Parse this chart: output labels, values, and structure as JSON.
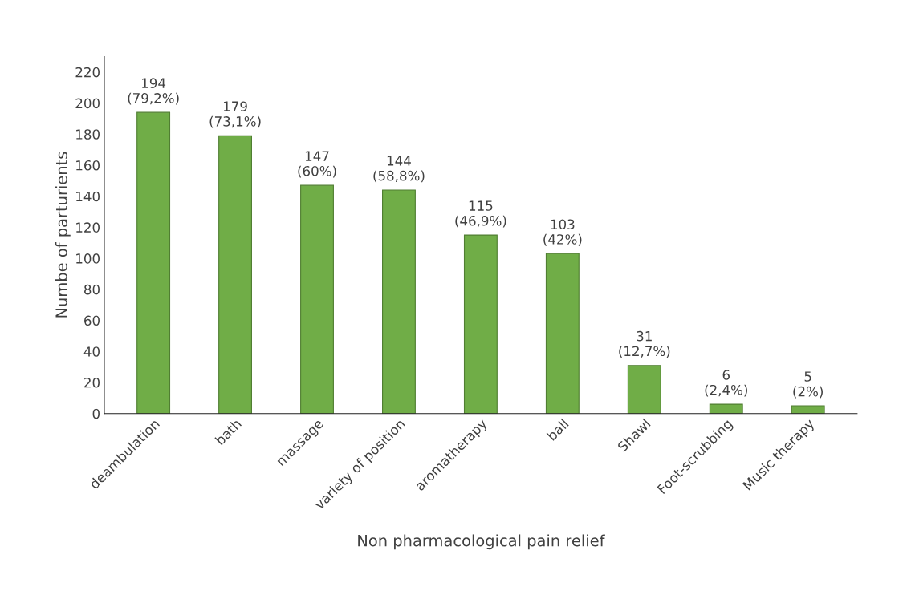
{
  "chart_data": {
    "type": "bar",
    "xlabel": "Non pharmacological pain relief",
    "ylabel": "Numbe of parturients",
    "categories": [
      "deambulation",
      "bath",
      "massage",
      "variety of position",
      "aromatherapy",
      "ball",
      "Shawl",
      "Foot-scrubbing",
      "Music therapy"
    ],
    "values": [
      194,
      179,
      147,
      144,
      115,
      103,
      31,
      6,
      5
    ],
    "value_labels": [
      "194\n(79,2%)",
      "179\n(73,1%)",
      "147\n(60%)",
      "144\n(58,8%)",
      "115\n(46,9%)",
      "103\n(42%)",
      "31\n(12,7%)",
      "6\n(2,4%)",
      "5\n(2%)"
    ],
    "color": "#70ad47",
    "ylim": [
      0,
      230
    ],
    "yticks": [
      0,
      20,
      40,
      60,
      80,
      100,
      120,
      140,
      160,
      180,
      200,
      220
    ],
    "grid": false,
    "legend": false
  }
}
